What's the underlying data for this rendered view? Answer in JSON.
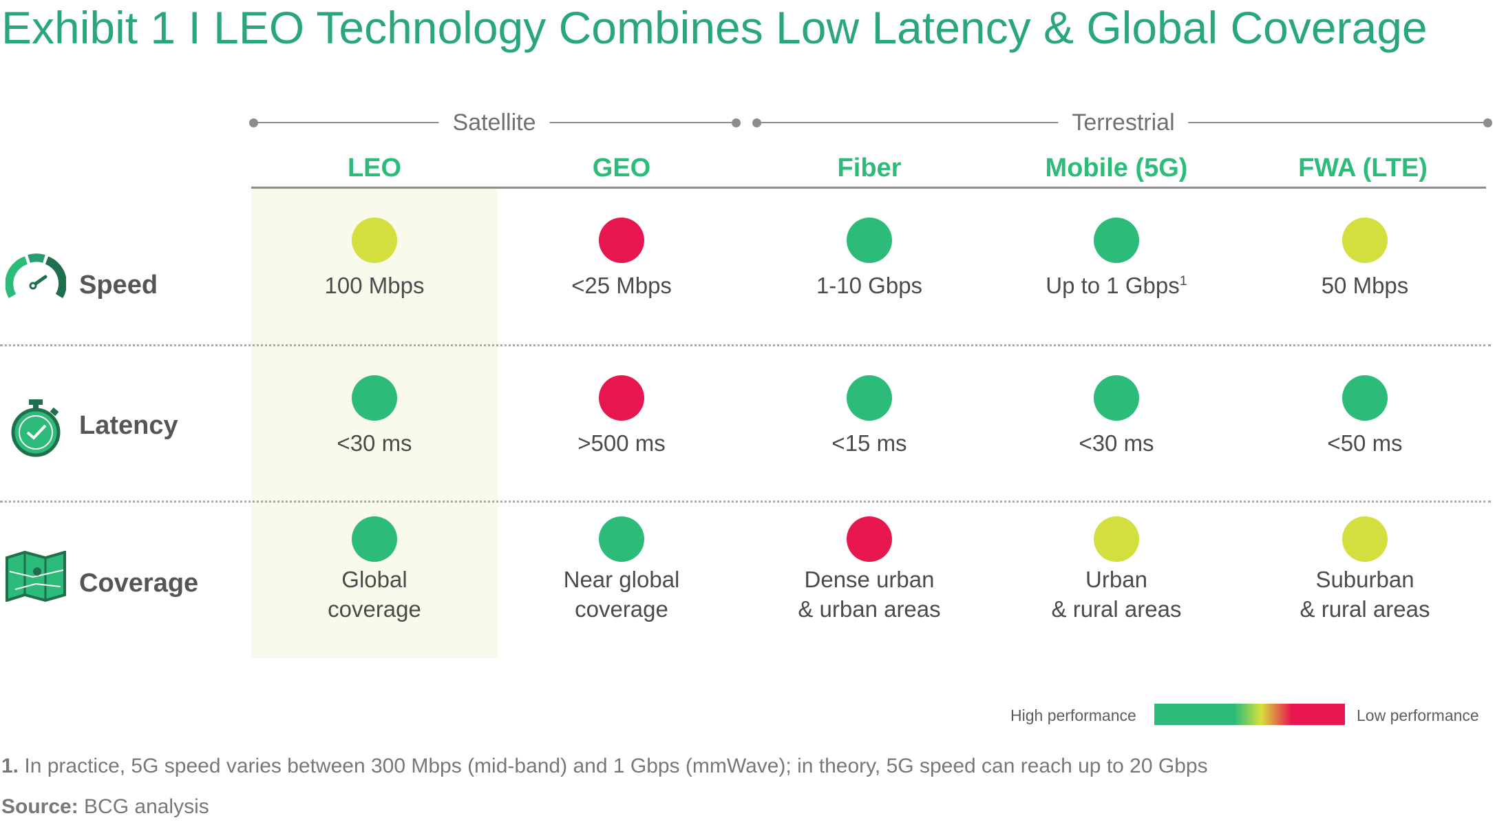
{
  "title": "Exhibit 1 I LEO Technology Combines Low Latency & Global Coverage",
  "colors": {
    "green": "#2dbb7a",
    "yellow": "#d3df3f",
    "red": "#e8164f",
    "title": "#2aa67f"
  },
  "chart_data": {
    "type": "table",
    "title": "Exhibit 1 I LEO Technology Combines Low Latency & Global Coverage",
    "groups": [
      {
        "label": "Satellite",
        "columns": [
          "LEO",
          "GEO"
        ]
      },
      {
        "label": "Terrestrial",
        "columns": [
          "Fiber",
          "Mobile (5G)",
          "FWA (LTE)"
        ]
      }
    ],
    "columns": [
      "LEO",
      "GEO",
      "Fiber",
      "Mobile (5G)",
      "FWA (LTE)"
    ],
    "highlighted_column": "LEO",
    "rows": [
      {
        "metric": "Speed",
        "icon": "speedometer-icon",
        "cells": [
          {
            "rating": "yellow",
            "lines": [
              "100 Mbps"
            ]
          },
          {
            "rating": "red",
            "lines": [
              "<25 Mbps"
            ]
          },
          {
            "rating": "green",
            "lines": [
              "1-10 Gbps"
            ]
          },
          {
            "rating": "green",
            "lines": [
              "Up to 1 Gbps"
            ],
            "footnote_ref": "1"
          },
          {
            "rating": "yellow",
            "lines": [
              "50 Mbps"
            ]
          }
        ]
      },
      {
        "metric": "Latency",
        "icon": "stopwatch-icon",
        "cells": [
          {
            "rating": "green",
            "lines": [
              "<30 ms"
            ]
          },
          {
            "rating": "red",
            "lines": [
              ">500 ms"
            ]
          },
          {
            "rating": "green",
            "lines": [
              "<15 ms"
            ]
          },
          {
            "rating": "green",
            "lines": [
              "<30 ms"
            ]
          },
          {
            "rating": "green",
            "lines": [
              "<50 ms"
            ]
          }
        ]
      },
      {
        "metric": "Coverage",
        "icon": "map-icon",
        "cells": [
          {
            "rating": "green",
            "lines": [
              "Global",
              "coverage"
            ]
          },
          {
            "rating": "green",
            "lines": [
              "Near global",
              "coverage"
            ]
          },
          {
            "rating": "red",
            "lines": [
              "Dense urban",
              "& urban areas"
            ]
          },
          {
            "rating": "yellow",
            "lines": [
              "Urban",
              "& rural areas"
            ]
          },
          {
            "rating": "yellow",
            "lines": [
              "Suburban",
              "& rural areas"
            ]
          }
        ]
      }
    ],
    "legend": {
      "high": "High performance",
      "low": "Low performance"
    }
  },
  "footnote": {
    "number": "1.",
    "text": " In practice, 5G speed varies between 300 Mbps (mid-band) and 1 Gbps (mmWave); in theory, 5G speed can reach up to 20 Gbps"
  },
  "source": {
    "label": "Source:",
    "text": " BCG analysis"
  }
}
